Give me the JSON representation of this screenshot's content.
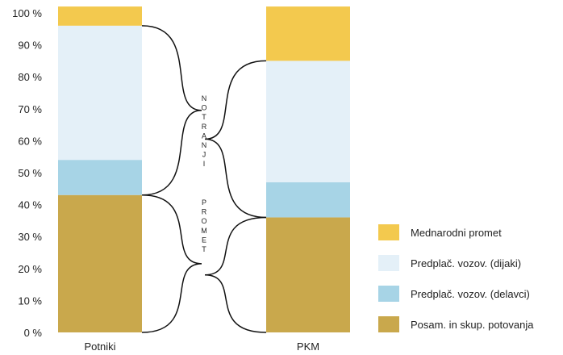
{
  "chart_data": {
    "type": "bar",
    "stacked": true,
    "percent": true,
    "categories": [
      "Potniki",
      "PKM"
    ],
    "series": [
      {
        "name": "Posam. in skup. potovanja",
        "color": "#C9A84C",
        "values": [
          43,
          36
        ]
      },
      {
        "name": "Predplač. vozov. (delavci)",
        "color": "#A7D4E6",
        "values": [
          11,
          11
        ]
      },
      {
        "name": "Predplač. vozov. (dijaki)",
        "color": "#E4F0F8",
        "values": [
          42,
          38
        ]
      },
      {
        "name": "Mednarodni promet",
        "color": "#F3C94E",
        "values": [
          6,
          17
        ]
      }
    ],
    "yticks": [
      "0 %",
      "10 %",
      "20 %",
      "30 %",
      "40 %",
      "50 %",
      "60 %",
      "70 %",
      "80 %",
      "90 %",
      "100 %"
    ],
    "ylim": [
      0,
      100
    ],
    "grid": false,
    "legend_position": "bottom-right",
    "annotation": {
      "upper_word": "NOTRANJI",
      "lower_word": "PROMET"
    }
  }
}
